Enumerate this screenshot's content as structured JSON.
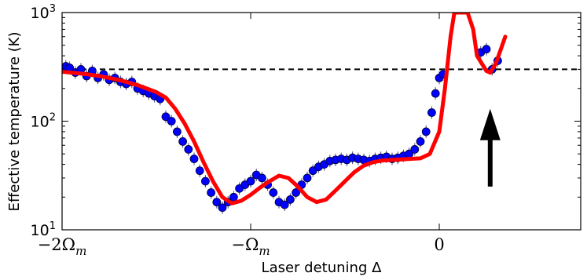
{
  "chart_data": {
    "type": "scatter",
    "xlabel": "Laser detuning Δ",
    "ylabel": "Effective temperature (K)",
    "x_scale": "linear",
    "y_scale": "log",
    "xlim": [
      -2.0,
      0.75
    ],
    "ylim": [
      10,
      1000
    ],
    "x_ticks": [
      {
        "value": -2,
        "label": "−2Ω",
        "sub": "m"
      },
      {
        "value": -1,
        "label": "−Ω",
        "sub": "m"
      },
      {
        "value": 0,
        "label": "0",
        "sub": ""
      }
    ],
    "y_ticks": [
      {
        "value": 10,
        "base": "10",
        "exp": "1"
      },
      {
        "value": 100,
        "base": "10",
        "exp": "2"
      },
      {
        "value": 1000,
        "base": "10",
        "exp": "3"
      }
    ],
    "grid": false,
    "legend": "none",
    "colors": {
      "points": "#0000ff",
      "fit": "#ff0000",
      "reference": "#000000",
      "arrow": "#000000"
    },
    "reference_line": {
      "y": 300,
      "style": "dashed"
    },
    "series": [
      {
        "kind": "data-points",
        "x": [
          -2.0,
          -1.98,
          -1.96,
          -1.93,
          -1.9,
          -1.87,
          -1.84,
          -1.81,
          -1.78,
          -1.75,
          -1.72,
          -1.69,
          -1.66,
          -1.63,
          -1.6,
          -1.57,
          -1.54,
          -1.51,
          -1.48,
          -1.45,
          -1.42,
          -1.39,
          -1.36,
          -1.33,
          -1.3,
          -1.27,
          -1.24,
          -1.21,
          -1.18,
          -1.15,
          -1.12,
          -1.09,
          -1.06,
          -1.03,
          -1.0,
          -0.97,
          -0.94,
          -0.91,
          -0.88,
          -0.85,
          -0.82,
          -0.79,
          -0.76,
          -0.73,
          -0.7,
          -0.67,
          -0.64,
          -0.61,
          -0.58,
          -0.55,
          -0.52,
          -0.49,
          -0.46,
          -0.43,
          -0.4,
          -0.37,
          -0.34,
          -0.31,
          -0.28,
          -0.25,
          -0.22,
          -0.19,
          -0.16,
          -0.13,
          -0.1,
          -0.07,
          -0.04,
          -0.02,
          0.0,
          0.02,
          0.22,
          0.25,
          0.28,
          0.31
        ],
        "y": [
          300,
          320,
          310,
          280,
          300,
          260,
          290,
          250,
          270,
          240,
          250,
          230,
          220,
          230,
          200,
          190,
          180,
          170,
          160,
          110,
          100,
          80,
          65,
          55,
          45,
          35,
          28,
          22,
          18,
          16,
          18,
          20,
          24,
          26,
          28,
          32,
          30,
          26,
          22,
          18,
          17,
          19,
          22,
          26,
          30,
          35,
          38,
          40,
          43,
          44,
          45,
          44,
          46,
          45,
          44,
          43,
          45,
          46,
          47,
          45,
          46,
          48,
          50,
          55,
          65,
          80,
          120,
          180,
          250,
          270,
          430,
          460,
          300,
          360
        ]
      },
      {
        "kind": "fit-curve",
        "x": [
          -2.0,
          -1.9,
          -1.8,
          -1.7,
          -1.6,
          -1.5,
          -1.45,
          -1.4,
          -1.35,
          -1.3,
          -1.25,
          -1.2,
          -1.15,
          -1.1,
          -1.05,
          -1.0,
          -0.95,
          -0.9,
          -0.85,
          -0.8,
          -0.75,
          -0.7,
          -0.65,
          -0.6,
          -0.55,
          -0.5,
          -0.45,
          -0.4,
          -0.35,
          -0.3,
          -0.25,
          -0.2,
          -0.15,
          -0.1,
          -0.05,
          0.0,
          0.03,
          0.06,
          0.08,
          0.15,
          0.18,
          0.2,
          0.25,
          0.27,
          0.3,
          0.35
        ],
        "y": [
          285,
          275,
          260,
          240,
          215,
          185,
          165,
          130,
          95,
          65,
          42,
          28,
          20,
          17.5,
          18.5,
          21,
          24.5,
          28,
          31.5,
          30,
          25,
          20,
          18,
          19,
          23,
          28,
          34,
          39,
          42,
          43.5,
          44,
          44.5,
          45,
          45.5,
          50,
          80,
          200,
          600,
          1000,
          1000,
          700,
          400,
          290,
          280,
          340,
          600
        ]
      }
    ],
    "annotations": [
      {
        "kind": "arrow",
        "pointing": "up",
        "x": 0.27,
        "y_from": 25,
        "y_to": 130
      }
    ]
  }
}
